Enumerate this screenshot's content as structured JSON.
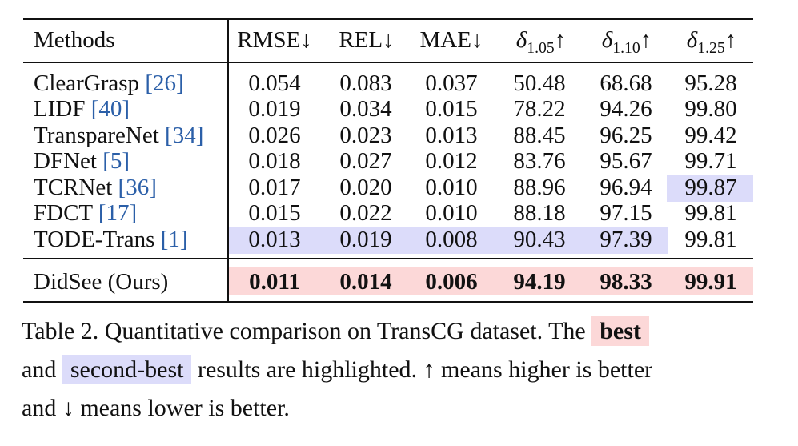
{
  "table": {
    "header": {
      "method": "Methods",
      "columns": [
        {
          "name": "RMSE",
          "arrow": "↓"
        },
        {
          "name": "REL",
          "arrow": "↓"
        },
        {
          "name": "MAE",
          "arrow": "↓"
        },
        {
          "symbol": "δ",
          "sub": "1.05",
          "arrow": "↑"
        },
        {
          "symbol": "δ",
          "sub": "1.10",
          "arrow": "↑"
        },
        {
          "symbol": "δ",
          "sub": "1.25",
          "arrow": "↑"
        }
      ]
    },
    "rows": [
      {
        "method": "ClearGrasp",
        "ref": "26",
        "values": [
          "0.054",
          "0.083",
          "0.037",
          "50.48",
          "68.68",
          "95.28"
        ]
      },
      {
        "method": "LIDF",
        "ref": "40",
        "values": [
          "0.019",
          "0.034",
          "0.015",
          "78.22",
          "94.26",
          "99.80"
        ]
      },
      {
        "method": "TranspareNet",
        "ref": "34",
        "values": [
          "0.026",
          "0.023",
          "0.013",
          "88.45",
          "96.25",
          "99.42"
        ]
      },
      {
        "method": "DFNet",
        "ref": "5",
        "values": [
          "0.018",
          "0.027",
          "0.012",
          "83.76",
          "95.67",
          "99.71"
        ]
      },
      {
        "method": "TCRNet",
        "ref": "36",
        "values": [
          "0.017",
          "0.020",
          "0.010",
          "88.96",
          "96.94",
          "99.87"
        ]
      },
      {
        "method": "FDCT",
        "ref": "17",
        "values": [
          "0.015",
          "0.022",
          "0.010",
          "88.18",
          "97.15",
          "99.81"
        ]
      },
      {
        "method": "TODE-Trans",
        "ref": "1",
        "values": [
          "0.013",
          "0.019",
          "0.008",
          "90.43",
          "97.39",
          "99.81"
        ]
      }
    ],
    "ours": {
      "method": "DidSee (Ours)",
      "values": [
        "0.011",
        "0.014",
        "0.006",
        "94.19",
        "98.33",
        "99.91"
      ]
    }
  },
  "highlight_colors": {
    "best": "#fcd8d8",
    "second_best": "#dcdcfa"
  },
  "caption": {
    "part1": "Table 2. Quantitative comparison on TransCG dataset. The",
    "best": "best",
    "part2": "and",
    "second": "second-best",
    "part3": "results are highlighted. ↑ means higher is better",
    "part4": "and ↓ means lower is better."
  }
}
